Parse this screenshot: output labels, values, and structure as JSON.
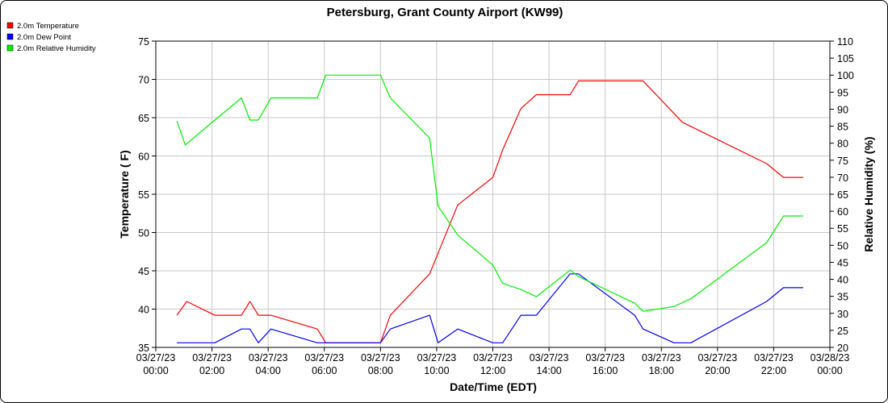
{
  "chart_data": {
    "type": "line",
    "title": "Petersburg, Grant County Airport (KW99)",
    "xlabel": "Date/Time (EDT)",
    "ylabel": "Temperature ( F)",
    "y2label": "Relative Humidity (%)",
    "xlim": [
      "03/27/23 00:00",
      "03/28/23 00:00"
    ],
    "ylim": [
      35,
      75
    ],
    "y2lim": [
      20,
      110
    ],
    "grid": true,
    "legend_position": "top-left",
    "x_ticks": [
      {
        "t": 0,
        "line1": "03/27/23",
        "line2": "00:00"
      },
      {
        "t": 2,
        "line1": "03/27/23",
        "line2": "02:00"
      },
      {
        "t": 4,
        "line1": "03/27/23",
        "line2": "04:00"
      },
      {
        "t": 6,
        "line1": "03/27/23",
        "line2": "06:00"
      },
      {
        "t": 8,
        "line1": "03/27/23",
        "line2": "08:00"
      },
      {
        "t": 10,
        "line1": "03/27/23",
        "line2": "10:00"
      },
      {
        "t": 12,
        "line1": "03/27/23",
        "line2": "12:00"
      },
      {
        "t": 14,
        "line1": "03/27/23",
        "line2": "14:00"
      },
      {
        "t": 16,
        "line1": "03/27/23",
        "line2": "16:00"
      },
      {
        "t": 18,
        "line1": "03/27/23",
        "line2": "18:00"
      },
      {
        "t": 20,
        "line1": "03/27/23",
        "line2": "20:00"
      },
      {
        "t": 22,
        "line1": "03/27/23",
        "line2": "22:00"
      },
      {
        "t": 24,
        "line1": "03/28/23",
        "line2": "00:00"
      }
    ],
    "y_ticks": [
      35,
      40,
      45,
      50,
      55,
      60,
      65,
      70,
      75
    ],
    "y2_ticks": [
      20,
      25,
      30,
      35,
      40,
      45,
      50,
      55,
      60,
      65,
      70,
      75,
      80,
      85,
      90,
      95,
      100,
      105,
      110
    ],
    "series": [
      {
        "name": "2.0m Temperature",
        "color": "#ff0000",
        "axis": "left",
        "points": [
          [
            0.75,
            39.2
          ],
          [
            1.1,
            41.0
          ],
          [
            2.1,
            39.2
          ],
          [
            3.05,
            39.2
          ],
          [
            3.35,
            41.0
          ],
          [
            3.65,
            39.2
          ],
          [
            4.1,
            39.2
          ],
          [
            5.75,
            37.4
          ],
          [
            6.05,
            35.6
          ],
          [
            8.0,
            35.6
          ],
          [
            8.35,
            39.2
          ],
          [
            9.75,
            44.6
          ],
          [
            10.75,
            53.6
          ],
          [
            12.0,
            57.2
          ],
          [
            12.35,
            60.8
          ],
          [
            13.0,
            66.2
          ],
          [
            13.55,
            68.0
          ],
          [
            14.75,
            68.0
          ],
          [
            15.05,
            69.8
          ],
          [
            17.35,
            69.8
          ],
          [
            18.75,
            64.4
          ],
          [
            21.75,
            59.0
          ],
          [
            22.35,
            57.2
          ],
          [
            23.05,
            57.2
          ]
        ]
      },
      {
        "name": "2.0m Dew Point",
        "color": "#0000ff",
        "axis": "left",
        "points": [
          [
            0.75,
            35.6
          ],
          [
            2.1,
            35.6
          ],
          [
            3.05,
            37.4
          ],
          [
            3.35,
            37.4
          ],
          [
            3.65,
            35.6
          ],
          [
            4.1,
            37.4
          ],
          [
            5.75,
            35.6
          ],
          [
            8.0,
            35.6
          ],
          [
            8.35,
            37.4
          ],
          [
            9.75,
            39.2
          ],
          [
            10.05,
            35.6
          ],
          [
            10.75,
            37.4
          ],
          [
            12.0,
            35.6
          ],
          [
            12.35,
            35.6
          ],
          [
            13.0,
            39.2
          ],
          [
            13.55,
            39.2
          ],
          [
            14.75,
            44.6
          ],
          [
            15.05,
            44.6
          ],
          [
            17.05,
            39.2
          ],
          [
            17.35,
            37.4
          ],
          [
            18.45,
            35.6
          ],
          [
            19.05,
            35.6
          ],
          [
            21.75,
            41.0
          ],
          [
            22.35,
            42.8
          ],
          [
            23.05,
            42.8
          ]
        ]
      },
      {
        "name": "2.0m Relative Humidity",
        "color": "#00ee00",
        "axis": "right",
        "points": [
          [
            0.75,
            86.5
          ],
          [
            1.05,
            79.5
          ],
          [
            2.1,
            86.8
          ],
          [
            3.05,
            93.3
          ],
          [
            3.35,
            86.8
          ],
          [
            3.65,
            86.8
          ],
          [
            4.1,
            93.3
          ],
          [
            5.75,
            93.3
          ],
          [
            6.05,
            100
          ],
          [
            8.0,
            100
          ],
          [
            8.35,
            93.3
          ],
          [
            9.75,
            81.5
          ],
          [
            10.05,
            61.5
          ],
          [
            10.75,
            53.0
          ],
          [
            12.0,
            44.2
          ],
          [
            12.35,
            38.8
          ],
          [
            13.0,
            37.0
          ],
          [
            13.55,
            34.9
          ],
          [
            14.75,
            42.7
          ],
          [
            15.05,
            40.8
          ],
          [
            17.05,
            33.0
          ],
          [
            17.35,
            30.6
          ],
          [
            18.45,
            32.0
          ],
          [
            19.05,
            34.3
          ],
          [
            21.75,
            50.8
          ],
          [
            22.35,
            58.6
          ],
          [
            23.05,
            58.6
          ]
        ]
      }
    ]
  }
}
